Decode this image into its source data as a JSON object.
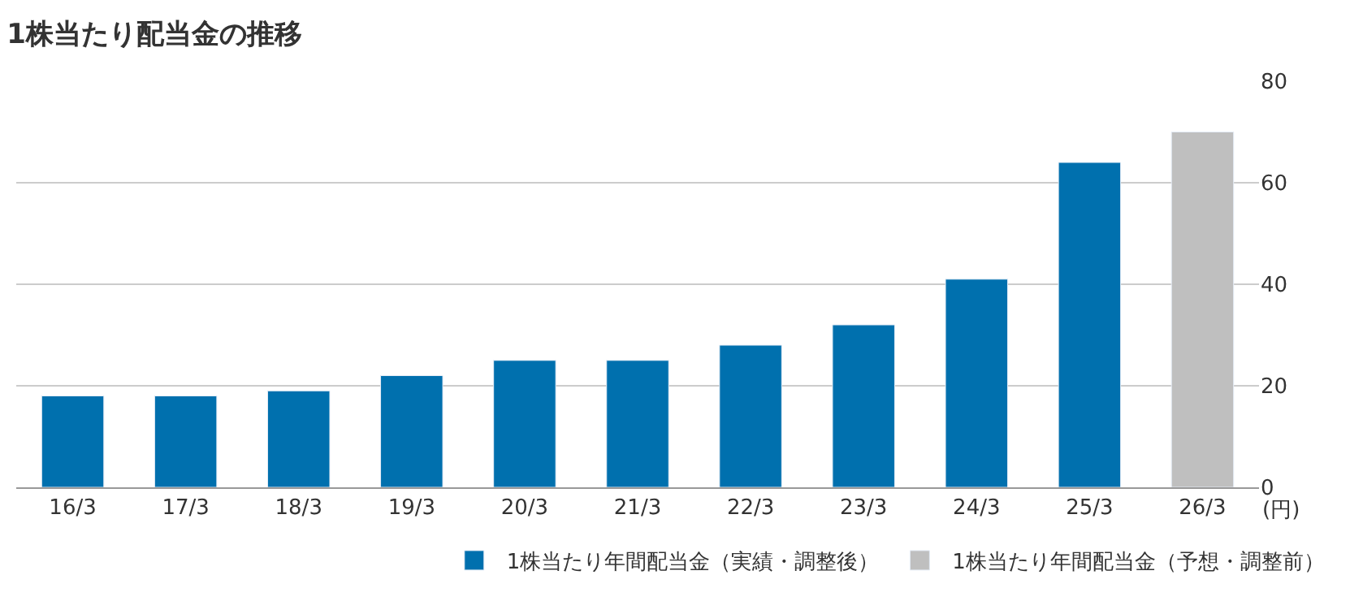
{
  "chart_data": {
    "type": "bar",
    "title": "1株当たり配当金の推移",
    "ylabel": "(円)",
    "categories": [
      "16/3",
      "17/3",
      "18/3",
      "19/3",
      "20/3",
      "21/3",
      "22/3",
      "23/3",
      "24/3",
      "25/3",
      "26/3"
    ],
    "series": [
      {
        "name": "1株当たり年間配当金（実績・調整後）",
        "color": "#0070ae",
        "values": [
          18,
          18,
          19,
          22,
          25,
          25,
          28,
          32,
          41,
          64,
          null
        ]
      },
      {
        "name": "1株当たり年間配当金（予想・調整前）",
        "color": "#bfbfbf",
        "values": [
          null,
          null,
          null,
          null,
          null,
          null,
          null,
          null,
          null,
          null,
          70
        ]
      }
    ],
    "ylim": [
      0,
      80
    ],
    "yticks": [
      0,
      20,
      40,
      60,
      80
    ],
    "grid": "y",
    "legend": "bottom right"
  }
}
